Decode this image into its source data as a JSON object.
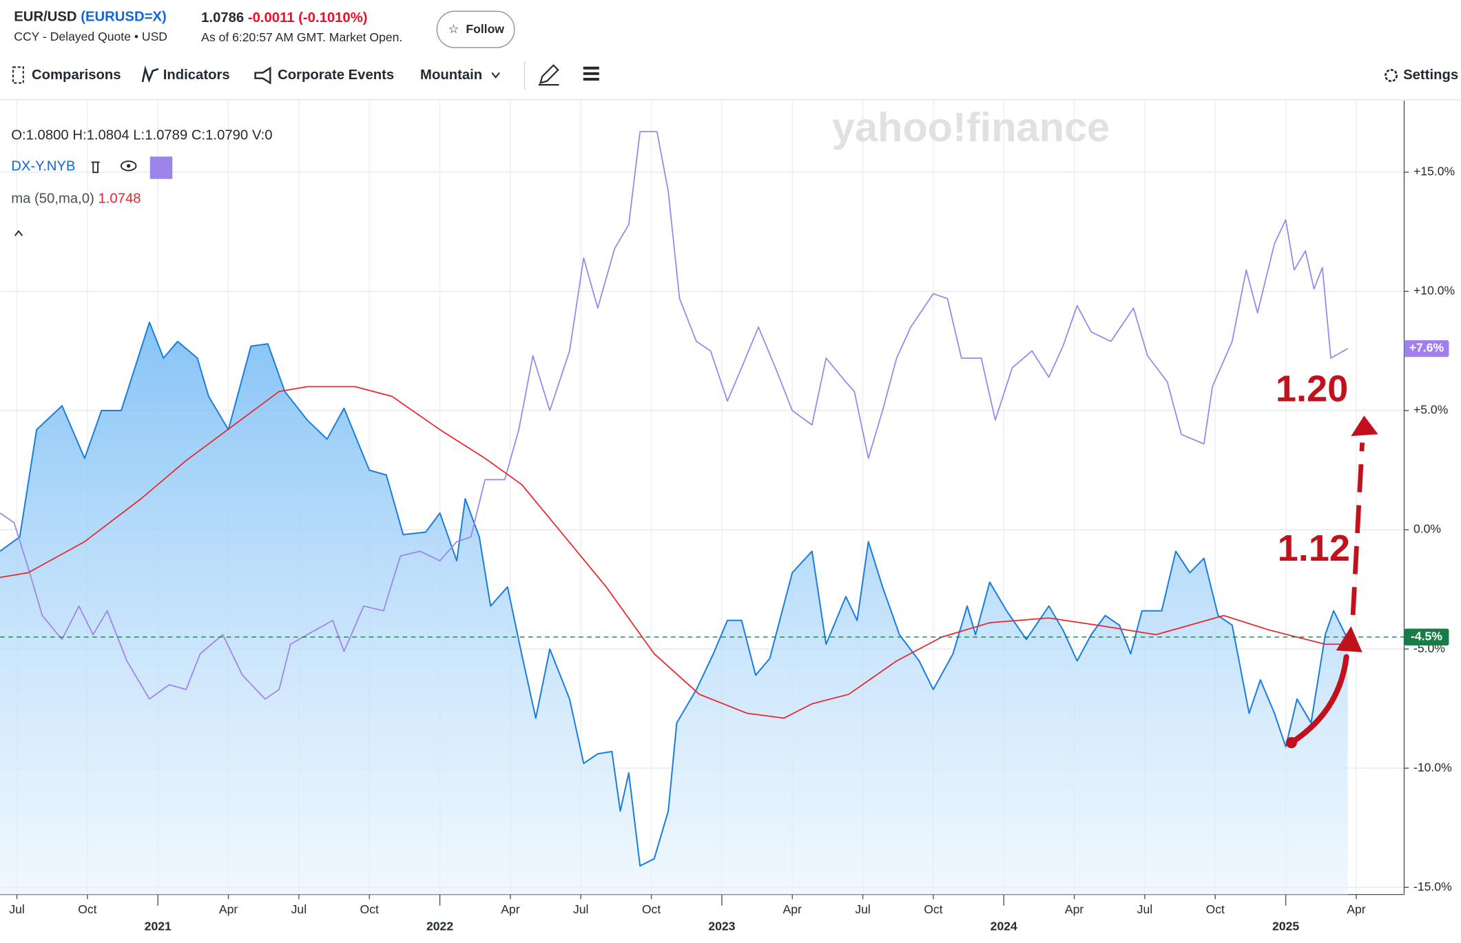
{
  "header": {
    "symbol": "(EURUSD=X)",
    "subtitle": "CCY - Delayed Quote • USD",
    "price": "1.0786",
    "change": "-0.0011",
    "change_percent": "(-0.1010%)",
    "as_of": "As of 6:20:57 AM GMT. Market Open.",
    "follow": "Follow"
  },
  "toolbar": [
    "Comparisons",
    "Indicators",
    "Corporate Events",
    "Mountain",
    "Settings"
  ],
  "ohlc": [
    "O:1.0800",
    "H:1.0804",
    "L:1.0789",
    "C:1.0790",
    "V:0"
  ],
  "watermark": "yahoo!finance",
  "annotations": [
    "1.20",
    "1.12"
  ],
  "chart_data": {
    "type": "line",
    "xlim": [
      2020.44,
      2025.42
    ],
    "ylim": [
      -15.3,
      18
    ],
    "xticks": [
      {
        "value": 2020.5,
        "label": "Jul"
      },
      {
        "value": 2020.75,
        "label": "Oct"
      },
      {
        "value": 2021.25,
        "label": "Apr"
      },
      {
        "value": 2021.5,
        "label": "Jul"
      },
      {
        "value": 2021.75,
        "label": "Oct"
      },
      {
        "value": 2022.25,
        "label": "Apr"
      },
      {
        "value": 2022.5,
        "label": "Jul"
      },
      {
        "value": 2022.75,
        "label": "Oct"
      },
      {
        "value": 2023.25,
        "label": "Apr"
      },
      {
        "value": 2023.5,
        "label": "Jul"
      },
      {
        "value": 2023.75,
        "label": "Oct"
      },
      {
        "value": 2024.25,
        "label": "Apr"
      },
      {
        "value": 2024.5,
        "label": "Jul"
      },
      {
        "value": 2024.75,
        "label": "Oct"
      },
      {
        "value": 2025.25,
        "label": "Apr"
      }
    ],
    "xticks_years": [
      2021,
      2022,
      2023,
      2024,
      2025
    ],
    "yticks": [
      {
        "value": -15,
        "label": "-15.0%"
      },
      {
        "value": -10,
        "label": "-10.0%"
      },
      {
        "value": -5,
        "label": "-5.0%"
      },
      {
        "value": 0,
        "label": "0.0%"
      },
      {
        "value": 5,
        "label": "+5.0%"
      },
      {
        "value": 10,
        "label": "+10.0%"
      },
      {
        "value": 15,
        "label": "+15.0%"
      }
    ],
    "grid": true,
    "series": [
      {
        "name": "EUR/USD",
        "color": "#1a7ee0",
        "area": true,
        "x": [
          2020.44,
          2020.51,
          2020.57,
          2020.66,
          2020.74,
          2020.8,
          2020.87,
          2020.97,
          2021.02,
          2021.07,
          2021.14,
          2021.18,
          2021.25,
          2021.33,
          2021.39,
          2021.45,
          2021.53,
          2021.6,
          2021.66,
          2021.75,
          2021.81,
          2021.87,
          2021.95,
          2022.0,
          2022.06,
          2022.09,
          2022.14,
          2022.18,
          2022.24,
          2022.29,
          2022.34,
          2022.39,
          2022.46,
          2022.51,
          2022.56,
          2022.61,
          2022.64,
          2022.67,
          2022.71,
          2022.76,
          2022.81,
          2022.84,
          2022.91,
          2022.97,
          2023.02,
          2023.07,
          2023.12,
          2023.17,
          2023.25,
          2023.32,
          2023.37,
          2023.44,
          2023.48,
          2023.52,
          2023.57,
          2023.63,
          2023.7,
          2023.75,
          2023.82,
          2023.87,
          2023.9,
          2023.95,
          2024.01,
          2024.08,
          2024.16,
          2024.21,
          2024.26,
          2024.31,
          2024.36,
          2024.41,
          2024.45,
          2024.49,
          2024.56,
          2024.61,
          2024.66,
          2024.71,
          2024.76,
          2024.81,
          2024.87,
          2024.91,
          2024.96,
          2025.0,
          2025.04,
          2025.09,
          2025.14,
          2025.17,
          2025.22
        ],
        "values": [
          -0.9,
          -0.3,
          4.2,
          5.2,
          3.0,
          5.0,
          5.0,
          8.7,
          7.2,
          7.9,
          7.2,
          5.6,
          4.2,
          7.7,
          7.8,
          5.8,
          4.6,
          3.8,
          5.1,
          2.5,
          2.3,
          -0.2,
          -0.1,
          0.7,
          -1.3,
          1.3,
          -0.3,
          -3.2,
          -2.4,
          -5.2,
          -7.9,
          -5.0,
          -7.1,
          -9.8,
          -9.4,
          -9.3,
          -11.8,
          -10.2,
          -14.1,
          -13.8,
          -11.8,
          -8.1,
          -6.7,
          -5.2,
          -3.8,
          -3.8,
          -6.1,
          -5.4,
          -1.8,
          -0.9,
          -4.8,
          -2.8,
          -3.8,
          -0.5,
          -2.4,
          -4.4,
          -5.5,
          -6.7,
          -5.2,
          -3.2,
          -4.4,
          -2.2,
          -3.4,
          -4.6,
          -3.2,
          -4.2,
          -5.5,
          -4.4,
          -3.6,
          -4.0,
          -5.2,
          -3.4,
          -3.4,
          -0.9,
          -1.8,
          -1.2,
          -3.6,
          -4.0,
          -7.7,
          -6.3,
          -7.7,
          -9.1,
          -7.1,
          -8.1,
          -4.4,
          -3.4,
          -4.6
        ]
      },
      {
        "name": "DX-Y.NYB",
        "color": "#9d84ea",
        "x": [
          2020.44,
          2020.49,
          2020.54,
          2020.59,
          2020.66,
          2020.72,
          2020.77,
          2020.82,
          2020.89,
          2020.97,
          2021.04,
          2021.1,
          2021.15,
          2021.23,
          2021.3,
          2021.38,
          2021.43,
          2021.47,
          2021.53,
          2021.62,
          2021.66,
          2021.73,
          2021.8,
          2021.86,
          2021.93,
          2022.0,
          2022.06,
          2022.11,
          2022.16,
          2022.23,
          2022.28,
          2022.33,
          2022.39,
          2022.46,
          2022.51,
          2022.56,
          2022.62,
          2022.67,
          2022.71,
          2022.77,
          2022.81,
          2022.85,
          2022.91,
          2022.96,
          2023.02,
          2023.07,
          2023.13,
          2023.19,
          2023.25,
          2023.32,
          2023.37,
          2023.44,
          2023.47,
          2023.52,
          2023.57,
          2023.62,
          2023.67,
          2023.75,
          2023.8,
          2023.85,
          2023.92,
          2023.97,
          2024.03,
          2024.1,
          2024.16,
          2024.21,
          2024.26,
          2024.31,
          2024.38,
          2024.46,
          2024.51,
          2024.58,
          2024.63,
          2024.71,
          2024.74,
          2024.81,
          2024.86,
          2024.9,
          2024.96,
          2025.0,
          2025.03,
          2025.07,
          2025.1,
          2025.13,
          2025.16,
          2025.19,
          2025.22
        ],
        "values": [
          0.7,
          0.3,
          -1.6,
          -3.6,
          -4.6,
          -3.2,
          -4.4,
          -3.4,
          -5.5,
          -7.1,
          -6.5,
          -6.7,
          -5.2,
          -4.4,
          -6.1,
          -7.1,
          -6.7,
          -4.8,
          -4.4,
          -3.8,
          -5.1,
          -3.2,
          -3.4,
          -1.1,
          -0.9,
          -1.3,
          -0.5,
          -0.3,
          2.1,
          2.1,
          4.2,
          7.3,
          5.0,
          7.5,
          11.4,
          9.3,
          11.8,
          12.8,
          16.7,
          16.7,
          14.2,
          9.7,
          7.9,
          7.5,
          5.4,
          6.8,
          8.5,
          6.8,
          5.0,
          4.4,
          7.2,
          6.2,
          5.8,
          3.0,
          5.0,
          7.2,
          8.5,
          9.9,
          9.7,
          7.2,
          7.2,
          4.6,
          6.8,
          7.5,
          6.4,
          7.7,
          9.4,
          8.3,
          7.9,
          9.3,
          7.3,
          6.2,
          4.0,
          3.6,
          6.0,
          7.9,
          10.9,
          9.1,
          12.0,
          13.0,
          10.9,
          11.7,
          10.1,
          11.0,
          7.2,
          7.4,
          7.6
        ]
      },
      {
        "name": "ma (50,ma,0)",
        "color": "#e8262b",
        "value_label": "1.0748",
        "x": [
          2020.44,
          2020.54,
          2020.74,
          2020.94,
          2021.1,
          2021.27,
          2021.43,
          2021.53,
          2021.7,
          2021.83,
          2022.0,
          2022.16,
          2022.29,
          2022.43,
          2022.59,
          2022.76,
          2022.92,
          2023.09,
          2023.22,
          2023.32,
          2023.45,
          2023.62,
          2023.78,
          2023.95,
          2024.16,
          2024.33,
          2024.54,
          2024.78,
          2024.94,
          2025.14,
          2025.22
        ],
        "values": [
          -2.0,
          -1.8,
          -0.5,
          1.3,
          2.9,
          4.4,
          5.8,
          6.0,
          6.0,
          5.6,
          4.2,
          3.0,
          1.9,
          -0.1,
          -2.4,
          -5.2,
          -6.9,
          -7.7,
          -7.9,
          -7.3,
          -6.9,
          -5.5,
          -4.5,
          -3.9,
          -3.7,
          -4.0,
          -4.4,
          -3.6,
          -4.2,
          -4.8,
          -4.8
        ]
      }
    ],
    "price_badges": [
      {
        "value": 7.6,
        "label": "+7.6%",
        "color": "#a07ff0"
      },
      {
        "value": -4.5,
        "label": "-4.5%",
        "color": "#177d47",
        "line": "dashed"
      }
    ]
  }
}
